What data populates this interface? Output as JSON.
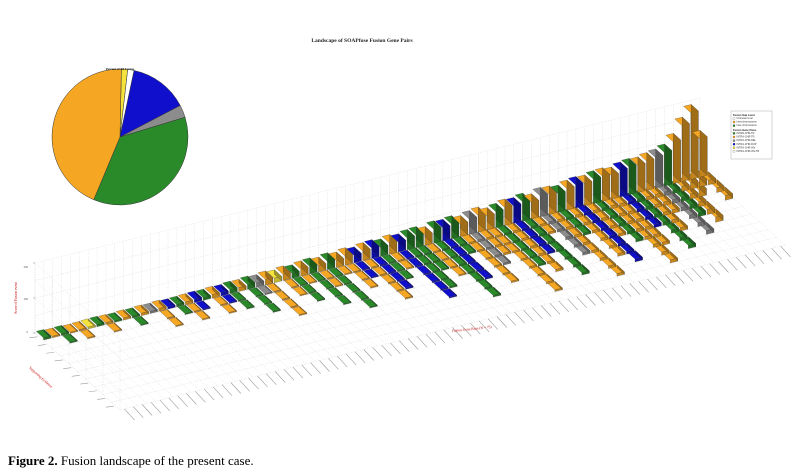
{
  "caption": {
    "label": "Figure 2.",
    "text": " Fusion landscape of the present case."
  },
  "chart_data": [
    {
      "type": "bar3d",
      "title": "Landscape of SOAPfuse Fusion Gene Pairs",
      "xlabel": "Fusion Gene Pairs (N = 75)",
      "ylabel": "Supporting Evidence",
      "zlabel": "Score of Fusion event",
      "zlim": [
        0,
        200
      ],
      "zticks": [
        "0",
        "100",
        "200"
      ],
      "colors": {
        "inter_chromosome": "#2a8a2a",
        "intra_chromosome": "#f5a623",
        "intra_chromosome_adjacent": "#1010cc",
        "other": "#8c8c8c",
        "cross_strand": "#f5e33b",
        "grid": "#cfcfcf"
      },
      "legend": {
        "placement": "right",
        "head1": "Fusion Gap Level",
        "head2": "Fusion Gene Class",
        "items1": [
          "Unknown level",
          "Intra-chromosome",
          "Inter-chromosome"
        ],
        "items2": [
          "INTER-CHR-TR",
          "INTRA-CHR-TR",
          "INTRA-CHR-DEL",
          "INTRA-CHR-DUP",
          "INTRA-CHR-INV",
          "INTRA-CHR-INV-TR"
        ]
      },
      "z_values": [
        6,
        4,
        5,
        3,
        4,
        5,
        6,
        5,
        4,
        6,
        5,
        7,
        6,
        8,
        6,
        7,
        8,
        9,
        8,
        10,
        9,
        12,
        11,
        14,
        12,
        16,
        13,
        18,
        15,
        20,
        22,
        18,
        24,
        20,
        26,
        22,
        28,
        30,
        26,
        32,
        28,
        34,
        36,
        30,
        40,
        38,
        42,
        36,
        44,
        48,
        40,
        46,
        52,
        50,
        56,
        48,
        60,
        58,
        54,
        62,
        66,
        64,
        70,
        72,
        68,
        76,
        80,
        78,
        84,
        88,
        96,
        120,
        160,
        190,
        110
      ],
      "bar_colors": [
        "inter_chromosome",
        "intra_chromosome",
        "inter_chromosome",
        "intra_chromosome",
        "intra_chromosome",
        "cross_strand",
        "inter_chromosome",
        "intra_chromosome",
        "inter_chromosome",
        "intra_chromosome",
        "inter_chromosome",
        "intra_chromosome",
        "other",
        "intra_chromosome",
        "intra_chromosome_adjacent",
        "inter_chromosome",
        "intra_chromosome",
        "intra_chromosome_adjacent",
        "inter_chromosome",
        "intra_chromosome",
        "intra_chromosome_adjacent",
        "inter_chromosome",
        "intra_chromosome",
        "inter_chromosome",
        "other",
        "intra_chromosome",
        "cross_strand",
        "intra_chromosome",
        "inter_chromosome",
        "intra_chromosome",
        "inter_chromosome",
        "intra_chromosome",
        "inter_chromosome",
        "intra_chromosome",
        "intra_chromosome",
        "intra_chromosome_adjacent",
        "intra_chromosome",
        "intra_chromosome_adjacent",
        "inter_chromosome",
        "intra_chromosome",
        "intra_chromosome_adjacent",
        "inter_chromosome",
        "inter_chromosome",
        "intra_chromosome",
        "inter_chromosome",
        "intra_chromosome_adjacent",
        "inter_chromosome",
        "intra_chromosome",
        "other",
        "intra_chromosome",
        "intra_chromosome",
        "inter_chromosome",
        "intra_chromosome",
        "intra_chromosome_adjacent",
        "inter_chromosome",
        "intra_chromosome",
        "other",
        "intra_chromosome",
        "inter_chromosome",
        "intra_chromosome",
        "intra_chromosome_adjacent",
        "intra_chromosome",
        "inter_chromosome",
        "intra_chromosome",
        "intra_chromosome",
        "intra_chromosome_adjacent",
        "inter_chromosome",
        "intra_chromosome",
        "intra_chromosome",
        "other",
        "inter_chromosome",
        "intra_chromosome",
        "intra_chromosome",
        "intra_chromosome",
        "intra_chromosome"
      ],
      "depth_rows": [
        1,
        1,
        2,
        1,
        2,
        1,
        1,
        2,
        1,
        1,
        2,
        1,
        1,
        3,
        1,
        2,
        3,
        2,
        1,
        3,
        2,
        3,
        1,
        4,
        2,
        5,
        1,
        3,
        4,
        2,
        5,
        3,
        6,
        2,
        4,
        3,
        6,
        5,
        4,
        3,
        7,
        6,
        4,
        5,
        8,
        6,
        3,
        7,
        5,
        4,
        9,
        6,
        7,
        5,
        8,
        3,
        6,
        9,
        4,
        7,
        8,
        5,
        6,
        9,
        7,
        5,
        8,
        6,
        4,
        7,
        5,
        6,
        3,
        2,
        4
      ]
    },
    {
      "type": "pie",
      "title": "Percent of All Fusion",
      "values": [
        44,
        36,
        3,
        14,
        1.5,
        1.5
      ],
      "colors": [
        "#f5a623",
        "#2a8a2a",
        "#8c8c8c",
        "#1010cc",
        "#f5e33b",
        "#ffffff"
      ]
    }
  ]
}
